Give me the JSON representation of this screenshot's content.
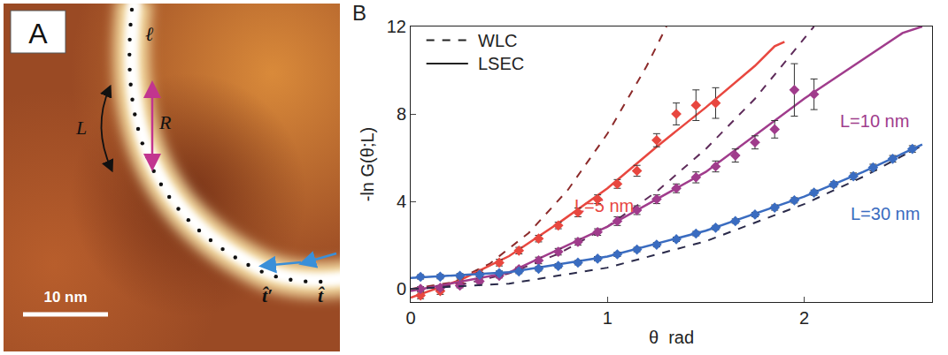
{
  "panel_a": {
    "label": "A",
    "scale_bar": "10 nm",
    "contour_label": "ℓ",
    "arc_label": "L",
    "chord_label": "R",
    "tangent_labels": [
      "t̂′",
      "t̂"
    ]
  },
  "chart_data": {
    "type": "line",
    "panel_label": "B",
    "x_label": "θ  rad",
    "y_label": "-ln G(θ;L)",
    "xlim": [
      0,
      2.65
    ],
    "ylim": [
      -0.6,
      12
    ],
    "xticks": [
      0,
      1,
      2
    ],
    "yticks": [
      0,
      4,
      8,
      12
    ],
    "grid": false,
    "legend": "upper left",
    "series": [
      {
        "name": "WLC",
        "line_style": "dash",
        "color": "#222222"
      },
      {
        "name": "LSEC",
        "line_style": "solid",
        "color": "#222222"
      }
    ],
    "curves": [
      {
        "label": "L=5 nm",
        "color": "#e8473f",
        "marker": "diamond",
        "x": [
          0.05,
          0.15,
          0.25,
          0.35,
          0.45,
          0.55,
          0.65,
          0.75,
          0.85,
          0.95,
          1.05,
          1.15,
          1.25,
          1.35,
          1.45,
          1.55
        ],
        "values": [
          -0.3,
          -0.1,
          0.25,
          0.7,
          1.2,
          1.75,
          2.3,
          2.9,
          3.5,
          4.1,
          4.8,
          5.4,
          6.8,
          8.0,
          8.4,
          8.5
        ],
        "errors": [
          0.15,
          0.15,
          0.15,
          0.15,
          0.15,
          0.15,
          0.15,
          0.15,
          0.2,
          0.2,
          0.2,
          0.25,
          0.3,
          0.5,
          0.7,
          0.7
        ],
        "LSEC": {
          "x": [
            0,
            0.25,
            0.5,
            0.75,
            1.0,
            1.25,
            1.5,
            1.75,
            1.85,
            1.9
          ],
          "values": [
            -0.4,
            0.4,
            1.5,
            3.0,
            4.6,
            6.5,
            8.3,
            10.2,
            11.1,
            11.3
          ]
        },
        "WLC": {
          "color": "#8c2a2a",
          "x": [
            0,
            0.2,
            0.4,
            0.6,
            0.8,
            1.0,
            1.2,
            1.3
          ],
          "values": [
            0,
            0.28,
            1.14,
            2.56,
            4.54,
            7.1,
            10.2,
            12.0
          ]
        }
      },
      {
        "label": "L=10 nm",
        "color": "#a03c8c",
        "marker": "diamond",
        "x": [
          0.05,
          0.15,
          0.25,
          0.35,
          0.45,
          0.55,
          0.65,
          0.75,
          0.85,
          0.95,
          1.05,
          1.15,
          1.25,
          1.35,
          1.45,
          1.55,
          1.65,
          1.75,
          1.85,
          1.95,
          2.05
        ],
        "values": [
          0.0,
          0.05,
          0.15,
          0.35,
          0.6,
          0.9,
          1.3,
          1.7,
          2.15,
          2.6,
          3.1,
          3.6,
          4.1,
          4.6,
          5.1,
          5.6,
          6.1,
          6.7,
          7.3,
          9.1,
          8.9
        ],
        "errors": [
          0.1,
          0.1,
          0.1,
          0.1,
          0.1,
          0.1,
          0.15,
          0.15,
          0.15,
          0.15,
          0.2,
          0.2,
          0.2,
          0.2,
          0.25,
          0.25,
          0.3,
          0.3,
          0.4,
          1.2,
          0.7
        ],
        "LSEC": {
          "x": [
            0,
            0.5,
            1.0,
            1.5,
            2.0,
            2.3,
            2.5,
            2.6
          ],
          "values": [
            -0.1,
            0.75,
            2.85,
            5.35,
            8.7,
            10.5,
            11.7,
            12.0
          ]
        },
        "WLC": {
          "color": "#5e2b5a",
          "x": [
            0,
            0.25,
            0.5,
            0.75,
            1.0,
            1.25,
            1.5,
            1.75,
            2.05
          ],
          "values": [
            0,
            0.18,
            0.71,
            1.6,
            2.85,
            4.45,
            6.4,
            8.7,
            12.0
          ]
        }
      },
      {
        "label": "L=30 nm",
        "color": "#3a6cc0",
        "marker": "diamond",
        "x": [
          0.05,
          0.15,
          0.25,
          0.35,
          0.45,
          0.55,
          0.65,
          0.75,
          0.85,
          0.95,
          1.05,
          1.15,
          1.25,
          1.35,
          1.45,
          1.55,
          1.65,
          1.75,
          1.85,
          1.95,
          2.05,
          2.15,
          2.25,
          2.35,
          2.45,
          2.55
        ],
        "values": [
          0.55,
          0.56,
          0.6,
          0.65,
          0.72,
          0.8,
          0.92,
          1.05,
          1.2,
          1.38,
          1.58,
          1.8,
          2.02,
          2.27,
          2.53,
          2.8,
          3.1,
          3.4,
          3.72,
          4.05,
          4.4,
          4.78,
          5.15,
          5.55,
          5.95,
          6.4
        ],
        "errors": [
          0.1,
          0.1,
          0.1,
          0.1,
          0.1,
          0.1,
          0.1,
          0.1,
          0.1,
          0.1,
          0.1,
          0.1,
          0.1,
          0.1,
          0.1,
          0.1,
          0.1,
          0.1,
          0.12,
          0.12,
          0.12,
          0.12,
          0.15,
          0.15,
          0.15,
          0.15
        ],
        "LSEC": {
          "x": [
            0,
            0.5,
            1.0,
            1.5,
            2.0,
            2.3,
            2.6
          ],
          "values": [
            0.5,
            0.76,
            1.48,
            2.66,
            4.22,
            5.35,
            6.6
          ]
        },
        "WLC": {
          "color": "#2a2a4a",
          "x": [
            0,
            0.5,
            1.0,
            1.5,
            2.0,
            2.3,
            2.6
          ],
          "values": [
            0,
            0.24,
            0.97,
            2.18,
            3.88,
            5.13,
            6.56
          ]
        }
      }
    ]
  }
}
